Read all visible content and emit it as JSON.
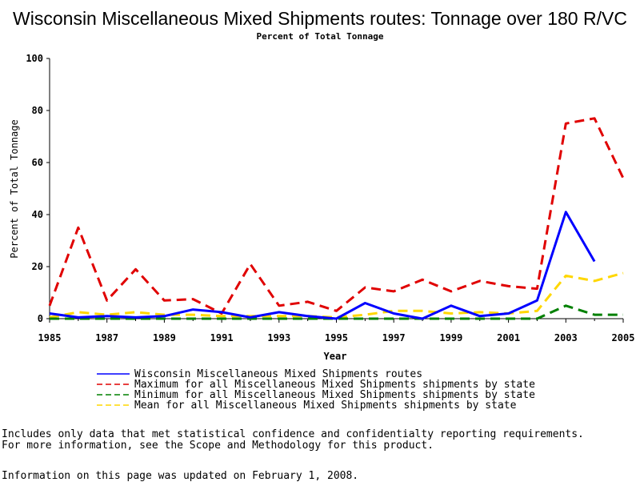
{
  "header": {
    "title": "Wisconsin Miscellaneous Mixed Shipments routes: Tonnage over 180 R/VC",
    "subtitle": "Percent of Total Tonnage"
  },
  "chart_data": {
    "type": "line",
    "title": "Wisconsin Miscellaneous Mixed Shipments routes: Tonnage over 180 R/VC",
    "subtitle": "Percent of Total Tonnage",
    "xlabel": "Year",
    "ylabel": "Percent of Total Tonnage",
    "xlim": [
      1985,
      2005
    ],
    "ylim": [
      0,
      100
    ],
    "x_ticks": [
      "1985",
      "1987",
      "1989",
      "1991",
      "1993",
      "1995",
      "1997",
      "1999",
      "2001",
      "2003",
      "2005"
    ],
    "y_ticks": [
      "0",
      "20",
      "40",
      "60",
      "80",
      "100"
    ],
    "x": [
      1985,
      1986,
      1987,
      1988,
      1989,
      1990,
      1991,
      1992,
      1993,
      1994,
      1995,
      1996,
      1997,
      1998,
      1999,
      2000,
      2001,
      2002,
      2003,
      2004,
      2005
    ],
    "grid": false,
    "legend_position": "bottom",
    "series": [
      {
        "name": "Wisconsin Miscellaneous Mixed Shipments routes",
        "color": "#0000ff",
        "style": "solid",
        "values": [
          2,
          0.5,
          1,
          0.5,
          1,
          3.5,
          2.5,
          0.5,
          2.5,
          1,
          0,
          6,
          2,
          0,
          5,
          1,
          2,
          7,
          41,
          22,
          null
        ]
      },
      {
        "name": "Maximum for all Miscellaneous Mixed Shipments shipments by state",
        "color": "#e00000",
        "style": "dashed",
        "values": [
          5,
          35,
          7,
          19,
          7,
          7.5,
          2,
          21,
          5,
          6.5,
          3,
          12,
          10.5,
          15,
          10.5,
          14.5,
          12.5,
          11.5,
          75,
          77,
          54
        ]
      },
      {
        "name": "Minimum for all Miscellaneous Mixed Shipments shipments by state",
        "color": "#008000",
        "style": "dashed",
        "values": [
          0,
          0,
          0,
          0,
          0,
          0,
          0,
          0,
          0,
          0,
          0,
          0,
          0,
          0,
          0,
          0,
          0,
          0,
          5,
          1.5,
          1.5
        ]
      },
      {
        "name": "Mean for all Miscellaneous Mixed Shipments shipments by state",
        "color": "#ffd700",
        "style": "dashed",
        "values": [
          0.5,
          2.5,
          1.5,
          2.5,
          1.5,
          1.5,
          1,
          1,
          1,
          1,
          0.5,
          1.5,
          3,
          3,
          2,
          2.5,
          2,
          3,
          16.5,
          14.5,
          17.5
        ]
      }
    ]
  },
  "notes": {
    "line1": "Includes only data that met statistical confidence and confidentialty reporting requirements.",
    "line2": "For more information, see the Scope and Methodology for this product.",
    "updated": "Information on this page was updated on February 1, 2008."
  }
}
